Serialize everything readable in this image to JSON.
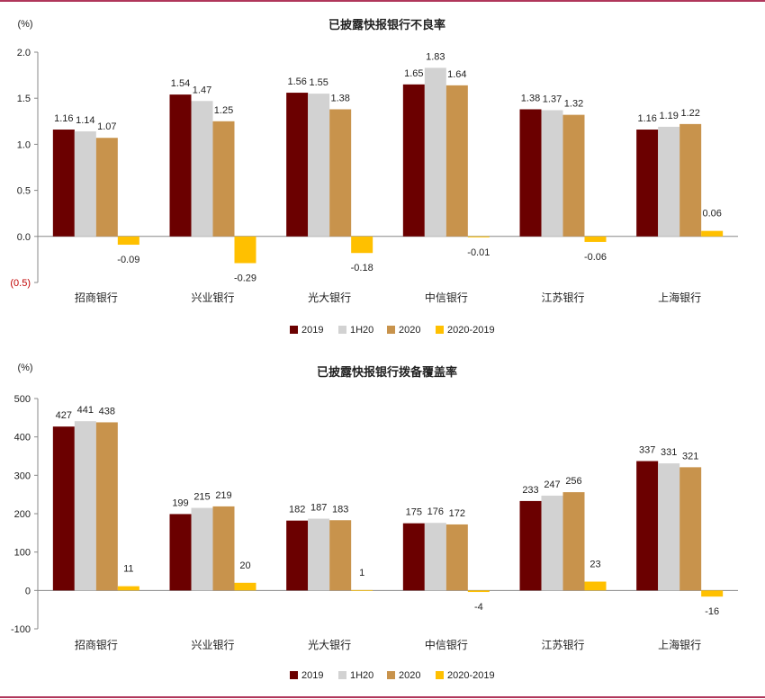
{
  "page": {
    "border_color": "#b0365b"
  },
  "chart_data": [
    {
      "type": "bar",
      "title": "已披露快报银行不良率",
      "ylabel": "(%)",
      "ylim": [
        -0.5,
        2.0
      ],
      "yticks": [
        -0.5,
        0.0,
        0.5,
        1.0,
        1.5,
        2.0
      ],
      "ytick_labels": [
        "(0.5)",
        "0.0",
        "0.5",
        "1.0",
        "1.5",
        "2.0"
      ],
      "categories": [
        "招商银行",
        "兴业银行",
        "光大银行",
        "中信银行",
        "江苏银行",
        "上海银行"
      ],
      "series": [
        {
          "name": "2019",
          "color": "#6b0000",
          "values": [
            1.16,
            1.54,
            1.56,
            1.65,
            1.38,
            1.16
          ],
          "labels": [
            "1.16",
            "1.54",
            "1.56",
            "1.65",
            "1.38",
            "1.16"
          ]
        },
        {
          "name": "1H20",
          "color": "#d2d2d2",
          "values": [
            1.14,
            1.47,
            1.55,
            1.83,
            1.37,
            1.19
          ],
          "labels": [
            "1.14",
            "1.47",
            "1.55",
            "1.83",
            "1.37",
            "1.19"
          ]
        },
        {
          "name": "2020",
          "color": "#c8934c",
          "values": [
            1.07,
            1.25,
            1.38,
            1.64,
            1.32,
            1.22
          ],
          "labels": [
            "1.07",
            "1.25",
            "1.38",
            "1.64",
            "1.32",
            "1.22"
          ]
        },
        {
          "name": "2020-2019",
          "color": "#ffc000",
          "values": [
            -0.09,
            -0.29,
            -0.18,
            -0.01,
            -0.06,
            0.06
          ],
          "labels": [
            "-0.09",
            "-0.29",
            "-0.18",
            "-0.01",
            "-0.06",
            "0.06"
          ]
        }
      ],
      "legend": "bottom-center",
      "grid": false
    },
    {
      "type": "bar",
      "title": "已披露快报银行拨备覆盖率",
      "ylabel": "(%)",
      "ylim": [
        -100,
        500
      ],
      "yticks": [
        -100,
        0,
        100,
        200,
        300,
        400,
        500
      ],
      "ytick_labels": [
        "-100",
        "0",
        "100",
        "200",
        "300",
        "400",
        "500"
      ],
      "categories": [
        "招商银行",
        "兴业银行",
        "光大银行",
        "中信银行",
        "江苏银行",
        "上海银行"
      ],
      "series": [
        {
          "name": "2019",
          "color": "#6b0000",
          "values": [
            427,
            199,
            182,
            175,
            233,
            337
          ],
          "labels": [
            "427",
            "199",
            "182",
            "175",
            "233",
            "337"
          ]
        },
        {
          "name": "1H20",
          "color": "#d2d2d2",
          "values": [
            441,
            215,
            187,
            176,
            247,
            331
          ],
          "labels": [
            "441",
            "215",
            "187",
            "176",
            "247",
            "331"
          ]
        },
        {
          "name": "2020",
          "color": "#c8934c",
          "values": [
            438,
            219,
            183,
            172,
            256,
            321
          ],
          "labels": [
            "438",
            "219",
            "183",
            "172",
            "256",
            "321"
          ]
        },
        {
          "name": "2020-2019",
          "color": "#ffc000",
          "values": [
            11,
            20,
            1,
            -4,
            23,
            -16
          ],
          "labels": [
            "11",
            "20",
            "1",
            "-4",
            "23",
            "-16"
          ]
        }
      ],
      "legend": "bottom-center",
      "grid": false
    }
  ]
}
